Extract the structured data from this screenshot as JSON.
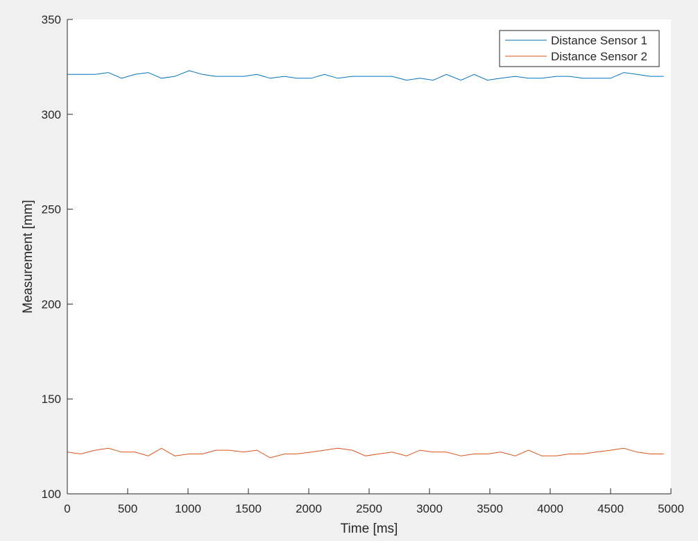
{
  "chart_data": {
    "type": "line",
    "xlabel": "Time [ms]",
    "ylabel": "Measurement [mm]",
    "xlim": [
      0,
      5000
    ],
    "ylim": [
      100,
      350
    ],
    "xticks": [
      0,
      500,
      1000,
      1500,
      2000,
      2500,
      3000,
      3500,
      4000,
      4500,
      5000
    ],
    "yticks": [
      100,
      150,
      200,
      250,
      300,
      350
    ],
    "grid": false,
    "legend_position": "top-right",
    "x": [
      0,
      110,
      230,
      340,
      450,
      560,
      670,
      780,
      890,
      1010,
      1120,
      1230,
      1340,
      1460,
      1570,
      1680,
      1800,
      1900,
      2020,
      2130,
      2240,
      2360,
      2470,
      2580,
      2690,
      2810,
      2920,
      3030,
      3140,
      3260,
      3370,
      3480,
      3590,
      3710,
      3820,
      3930,
      4050,
      4160,
      4270,
      4380,
      4500,
      4610,
      4720,
      4830,
      4940
    ],
    "series": [
      {
        "name": "Distance Sensor 1",
        "color": "#0072BD",
        "values": [
          321,
          321,
          321,
          322,
          319,
          321,
          322,
          319,
          320,
          323,
          321,
          320,
          320,
          320,
          321,
          319,
          320,
          319,
          319,
          321,
          319,
          320,
          320,
          320,
          320,
          318,
          319,
          318,
          321,
          318,
          321,
          318,
          319,
          320,
          319,
          319,
          320,
          320,
          319,
          319,
          319,
          322,
          321,
          320,
          320
        ]
      },
      {
        "name": "Distance Sensor 2",
        "color": "#D95319",
        "values": [
          122,
          121,
          123,
          124,
          122,
          122,
          120,
          124,
          120,
          121,
          121,
          123,
          123,
          122,
          123,
          119,
          121,
          121,
          122,
          123,
          124,
          123,
          120,
          121,
          122,
          120,
          123,
          122,
          122,
          120,
          121,
          121,
          122,
          120,
          123,
          120,
          120,
          121,
          121,
          122,
          123,
          124,
          122,
          121,
          121
        ]
      }
    ]
  }
}
